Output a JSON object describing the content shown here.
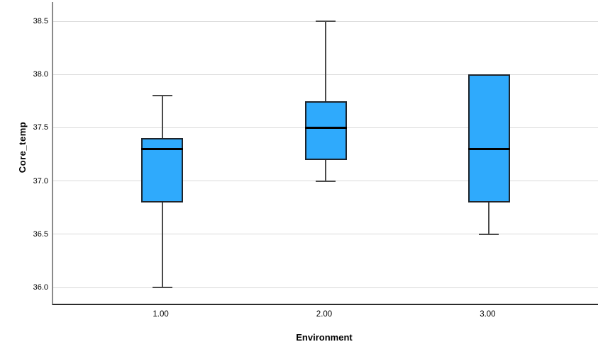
{
  "chart_data": {
    "type": "boxplot",
    "title": "",
    "xlabel": "Environment",
    "ylabel": "Core_temp",
    "categories": [
      "1.00",
      "2.00",
      "3.00"
    ],
    "y_ticks": [
      38.5,
      38.0,
      37.5,
      37.0,
      36.5,
      36.0
    ],
    "y_tick_labels": [
      "38.5",
      "38.0",
      "37.5",
      "37.0",
      "36.5",
      "36.0"
    ],
    "ylim": [
      35.82,
      38.68
    ],
    "grid": "horizontal-only",
    "legend": "none",
    "boxes": [
      {
        "category": "1.00",
        "whisker_low": 36.0,
        "q1": 36.8,
        "median": 37.3,
        "q3": 37.4,
        "whisker_high": 37.8
      },
      {
        "category": "2.00",
        "whisker_low": 37.0,
        "q1": 37.2,
        "median": 37.5,
        "q3": 37.75,
        "whisker_high": 38.5
      },
      {
        "category": "3.00",
        "whisker_low": 36.5,
        "q1": 36.8,
        "median": 37.3,
        "q3": 38.0,
        "whisker_high": 38.0
      }
    ],
    "colors": {
      "box_fill": "#2FAAFC",
      "box_border": "#1E242B",
      "median": "#000000",
      "whisker": "#4A4A4A",
      "gridline": "#D9D9D9",
      "y_axis_line": "#8A8A8A",
      "x_axis_line": "#2B2B2B",
      "text": "#000000",
      "background": "#FFFFFF"
    }
  }
}
